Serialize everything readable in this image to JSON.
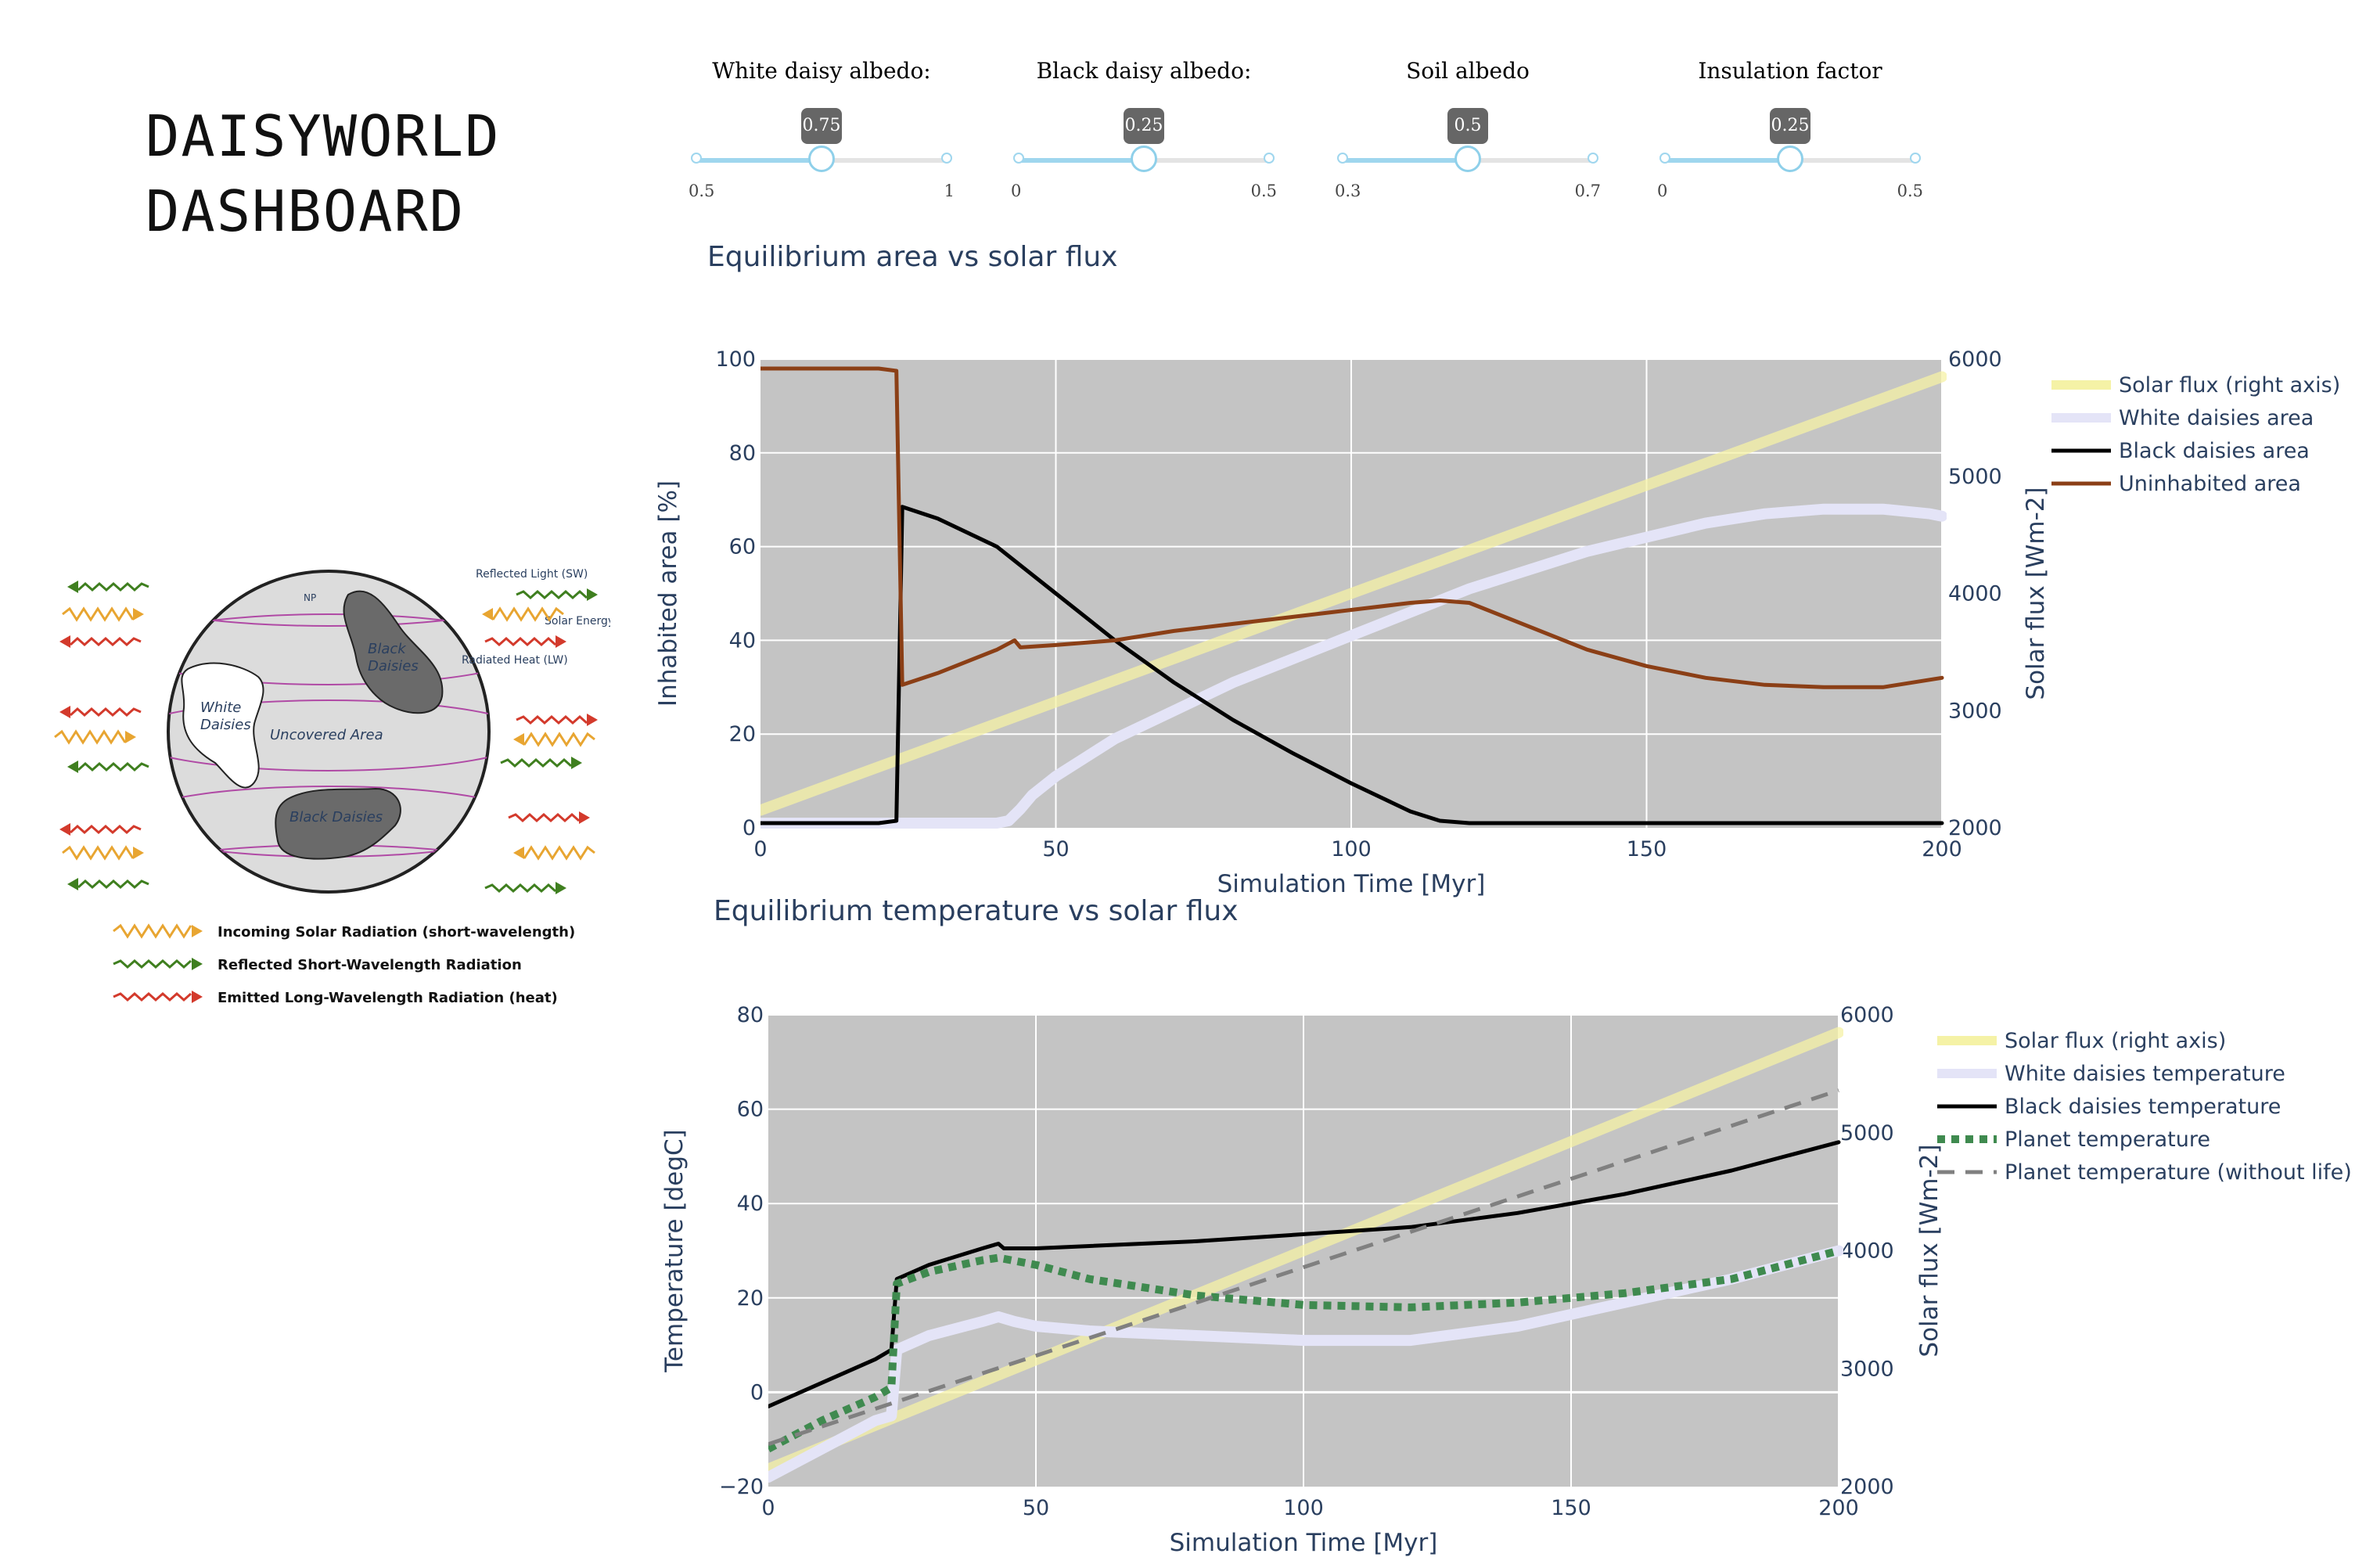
{
  "app": {
    "title_line1": "DAISYWORLD",
    "title_line2": "DASHBOARD"
  },
  "sliders": [
    {
      "label": "White daisy albedo:",
      "value": 0.75,
      "value_text": "0.75",
      "min": 0.5,
      "max": 1,
      "min_label": "0.5",
      "max_label": "1"
    },
    {
      "label": "Black daisy albedo:",
      "value": 0.25,
      "value_text": "0.25",
      "min": 0,
      "max": 0.5,
      "min_label": "0",
      "max_label": "0.5"
    },
    {
      "label": "Soil albedo",
      "value": 0.5,
      "value_text": "0.5",
      "min": 0.3,
      "max": 0.7,
      "min_label": "0.3",
      "max_label": "0.7"
    },
    {
      "label": "Insulation factor",
      "value": 0.25,
      "value_text": "0.25",
      "min": 0,
      "max": 0.5,
      "min_label": "0",
      "max_label": "0.5"
    }
  ],
  "diagram": {
    "labels": {
      "reflected_light": "Reflected Light (SW)",
      "solar_energy": "Solar Energy (SW)",
      "radiated_heat": "Radiated Heat (LW)",
      "np": "NP",
      "black_daisies_1": "Black",
      "black_daisies_2": "Daisies",
      "white_daisies_1": "White",
      "white_daisies_2": "Daisies",
      "uncovered": "Uncovered Area",
      "black_daisies_bottom": "Black Daisies"
    },
    "legend": [
      {
        "label": "Incoming Solar Radiation (short-wavelength)",
        "color": "#e8a531"
      },
      {
        "label": "Reflected Short-Wavelength Radiation",
        "color": "#3f7f1f"
      },
      {
        "label": "Emitted Long-Wavelength Radiation (heat)",
        "color": "#d33a2c"
      }
    ]
  },
  "chart_data": [
    {
      "type": "line",
      "title": "Equilibrium area vs solar flux",
      "xlabel": "Simulation Time [Myr]",
      "ylabel": "Inhabited area [%]",
      "y2label": "Solar flux [Wm-2]",
      "xlim": [
        0,
        200
      ],
      "ylim": [
        0,
        100
      ],
      "y2lim": [
        2000,
        6000
      ],
      "xticks": [
        0,
        50,
        100,
        150,
        200
      ],
      "yticks": [
        0,
        20,
        40,
        60,
        80,
        100
      ],
      "y2ticks": [
        2000,
        3000,
        4000,
        5000,
        6000
      ],
      "grid": true,
      "legend_position": "right",
      "series": [
        {
          "name": "Solar flux (right axis)",
          "axis": "y2",
          "color": "#f5f2a6",
          "width": 14,
          "x": [
            0,
            200
          ],
          "y": [
            2150,
            5850
          ]
        },
        {
          "name": "White daisies area",
          "axis": "y",
          "color": "#e4e4f7",
          "width": 14,
          "x": [
            0,
            10,
            20,
            30,
            40,
            42,
            44,
            46,
            50,
            55,
            60,
            70,
            80,
            90,
            100,
            110,
            120,
            130,
            140,
            150,
            160,
            170,
            180,
            190,
            198,
            200
          ],
          "y": [
            1,
            1,
            1,
            1,
            1,
            1.5,
            4,
            7,
            11,
            15,
            19,
            25,
            31,
            36,
            41,
            46,
            51,
            55,
            59,
            62,
            65,
            67,
            68,
            68,
            67,
            66.5
          ]
        },
        {
          "name": "Black daisies area",
          "axis": "y",
          "color": "#000000",
          "width": 5,
          "x": [
            0,
            10,
            20,
            23,
            24,
            30,
            40,
            44,
            50,
            60,
            70,
            80,
            90,
            100,
            110,
            115,
            120,
            130,
            150,
            200
          ],
          "y": [
            1,
            1,
            1,
            1.5,
            68.5,
            66,
            60,
            56,
            50,
            40,
            31,
            23,
            16,
            9.5,
            3.5,
            1.5,
            1,
            1,
            1,
            1
          ]
        },
        {
          "name": "Uninhabited area",
          "axis": "y",
          "color": "#8b3f16",
          "width": 5,
          "x": [
            0,
            10,
            20,
            23,
            24,
            30,
            40,
            43,
            44,
            50,
            60,
            70,
            80,
            90,
            100,
            110,
            115,
            120,
            130,
            140,
            150,
            160,
            170,
            180,
            190,
            200
          ],
          "y": [
            98,
            98,
            98,
            97.5,
            30.5,
            33,
            38,
            40,
            38.5,
            39,
            40,
            42,
            43.5,
            45,
            46.5,
            48,
            48.5,
            48,
            43,
            38,
            34.5,
            32,
            30.5,
            30,
            30,
            32
          ]
        }
      ]
    },
    {
      "type": "line",
      "title": "Equilibrium temperature vs solar flux",
      "xlabel": "Simulation Time [Myr]",
      "ylabel": "Temperature [degC]",
      "y2label": "Solar flux [Wm-2]",
      "xlim": [
        0,
        200
      ],
      "ylim": [
        -20,
        80
      ],
      "y2lim": [
        2000,
        6000
      ],
      "xticks": [
        0,
        50,
        100,
        150,
        200
      ],
      "yticks": [
        -20,
        0,
        20,
        40,
        60,
        80
      ],
      "y2ticks": [
        2000,
        3000,
        4000,
        5000,
        6000
      ],
      "grid": true,
      "legend_position": "right",
      "series": [
        {
          "name": "Solar flux (right axis)",
          "axis": "y2",
          "color": "#f5f2a6",
          "width": 14,
          "x": [
            0,
            200
          ],
          "y": [
            2150,
            5850
          ]
        },
        {
          "name": "White daisies temperature",
          "axis": "y",
          "color": "#e4e4f7",
          "width": 14,
          "x": [
            0,
            10,
            20,
            23,
            24,
            30,
            40,
            43,
            46,
            50,
            60,
            80,
            100,
            120,
            140,
            160,
            180,
            200
          ],
          "y": [
            -18,
            -12,
            -6,
            -5,
            9,
            12,
            15,
            16,
            15,
            14,
            13,
            12,
            11,
            11,
            14,
            19,
            24,
            30
          ]
        },
        {
          "name": "Black daisies temperature",
          "axis": "y",
          "color": "#000000",
          "width": 5,
          "x": [
            0,
            10,
            20,
            23,
            24,
            30,
            40,
            43,
            44,
            50,
            60,
            80,
            100,
            120,
            140,
            160,
            180,
            200
          ],
          "y": [
            -3,
            2,
            7,
            9,
            24,
            27,
            30.5,
            31.5,
            30.5,
            30.5,
            31,
            32,
            33.5,
            35,
            38,
            42,
            47,
            53
          ]
        },
        {
          "name": "Planet temperature",
          "axis": "y",
          "color": "#3f8a4f",
          "width": 10,
          "dash": "dot",
          "x": [
            0,
            10,
            20,
            23,
            24,
            30,
            40,
            43,
            50,
            60,
            80,
            100,
            120,
            140,
            160,
            180,
            200
          ],
          "y": [
            -12,
            -6,
            -1,
            1,
            23,
            25.5,
            28,
            28.5,
            27,
            24,
            20.5,
            18.5,
            18,
            19,
            21,
            24,
            30
          ]
        },
        {
          "name": "Planet temperature (without life)",
          "axis": "y",
          "color": "#808080",
          "width": 5,
          "dash": "dash",
          "x": [
            0,
            200
          ],
          "y": [
            -11,
            64
          ]
        }
      ]
    }
  ]
}
